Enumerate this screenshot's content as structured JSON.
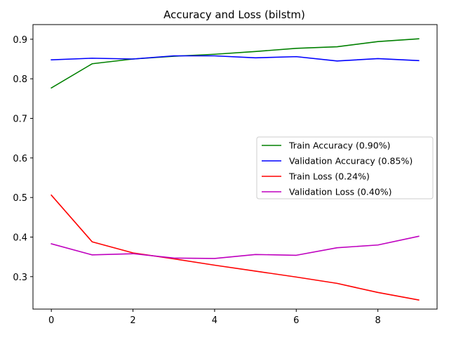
{
  "chart_data": {
    "type": "line",
    "title": "Accuracy and Loss (bilstm)",
    "xlabel": "",
    "ylabel": "",
    "x": [
      0,
      1,
      2,
      3,
      4,
      5,
      6,
      7,
      8,
      9
    ],
    "xlim": [
      -0.45,
      9.45
    ],
    "ylim": [
      0.218,
      0.937
    ],
    "xticks": [
      0,
      2,
      4,
      6,
      8
    ],
    "yticks": [
      0.3,
      0.4,
      0.5,
      0.6,
      0.7,
      0.8,
      0.9
    ],
    "grid": false,
    "legend_position": "center-right",
    "series": [
      {
        "name": "Train Accuracy (0.90%)",
        "color": "#008000",
        "values": [
          0.777,
          0.838,
          0.85,
          0.857,
          0.862,
          0.869,
          0.877,
          0.881,
          0.894,
          0.901
        ]
      },
      {
        "name": "Validation Accuracy (0.85%)",
        "color": "#0000ff",
        "values": [
          0.848,
          0.852,
          0.85,
          0.858,
          0.858,
          0.853,
          0.856,
          0.845,
          0.851,
          0.846
        ]
      },
      {
        "name": "Train Loss (0.24%)",
        "color": "#ff0000",
        "values": [
          0.506,
          0.388,
          0.36,
          0.345,
          0.329,
          0.314,
          0.299,
          0.283,
          0.26,
          0.241
        ]
      },
      {
        "name": "Validation Loss (0.40%)",
        "color": "#bf00bf",
        "values": [
          0.383,
          0.355,
          0.358,
          0.347,
          0.346,
          0.356,
          0.354,
          0.373,
          0.38,
          0.402
        ]
      }
    ]
  }
}
